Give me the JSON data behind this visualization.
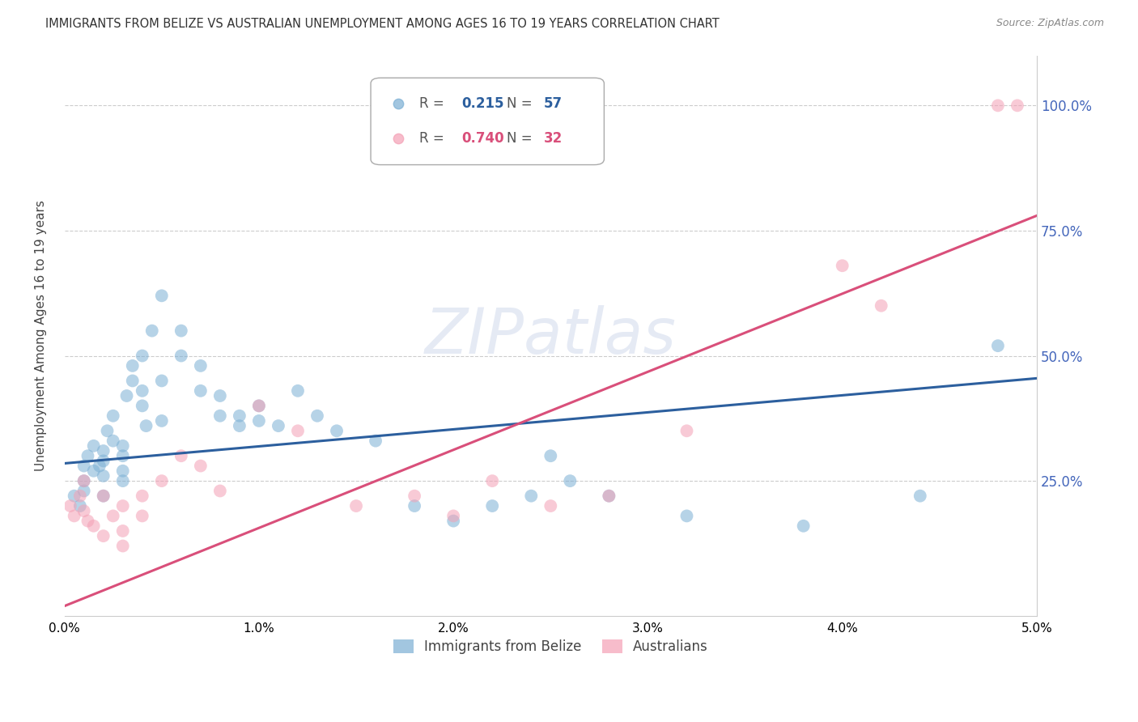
{
  "title": "IMMIGRANTS FROM BELIZE VS AUSTRALIAN UNEMPLOYMENT AMONG AGES 16 TO 19 YEARS CORRELATION CHART",
  "source": "Source: ZipAtlas.com",
  "ylabel": "Unemployment Among Ages 16 to 19 years",
  "ytick_values": [
    0.25,
    0.5,
    0.75,
    1.0
  ],
  "legend_blue_r": "0.215",
  "legend_blue_n": "57",
  "legend_pink_r": "0.740",
  "legend_pink_n": "32",
  "legend_blue_label": "Immigrants from Belize",
  "legend_pink_label": "Australians",
  "blue_color": "#7BAFD4",
  "pink_color": "#F4A0B5",
  "blue_line_color": "#2C5F9E",
  "pink_line_color": "#D94F7A",
  "watermark": "ZIPatlas",
  "blue_scatter_x": [
    0.0005,
    0.0008,
    0.001,
    0.001,
    0.001,
    0.0012,
    0.0015,
    0.0015,
    0.0018,
    0.002,
    0.002,
    0.002,
    0.002,
    0.0022,
    0.0025,
    0.0025,
    0.003,
    0.003,
    0.003,
    0.003,
    0.0032,
    0.0035,
    0.0035,
    0.004,
    0.004,
    0.004,
    0.0042,
    0.0045,
    0.005,
    0.005,
    0.005,
    0.006,
    0.006,
    0.007,
    0.007,
    0.008,
    0.008,
    0.009,
    0.009,
    0.01,
    0.01,
    0.011,
    0.012,
    0.013,
    0.014,
    0.016,
    0.018,
    0.02,
    0.022,
    0.024,
    0.025,
    0.026,
    0.028,
    0.032,
    0.038,
    0.044,
    0.048
  ],
  "blue_scatter_y": [
    0.22,
    0.2,
    0.28,
    0.25,
    0.23,
    0.3,
    0.27,
    0.32,
    0.28,
    0.26,
    0.29,
    0.31,
    0.22,
    0.35,
    0.38,
    0.33,
    0.3,
    0.27,
    0.32,
    0.25,
    0.42,
    0.45,
    0.48,
    0.4,
    0.43,
    0.5,
    0.36,
    0.55,
    0.62,
    0.45,
    0.37,
    0.5,
    0.55,
    0.43,
    0.48,
    0.38,
    0.42,
    0.36,
    0.38,
    0.37,
    0.4,
    0.36,
    0.43,
    0.38,
    0.35,
    0.33,
    0.2,
    0.17,
    0.2,
    0.22,
    0.3,
    0.25,
    0.22,
    0.18,
    0.16,
    0.22,
    0.52
  ],
  "pink_scatter_x": [
    0.0003,
    0.0005,
    0.0008,
    0.001,
    0.001,
    0.0012,
    0.0015,
    0.002,
    0.002,
    0.0025,
    0.003,
    0.003,
    0.003,
    0.004,
    0.004,
    0.005,
    0.006,
    0.007,
    0.008,
    0.01,
    0.012,
    0.015,
    0.018,
    0.02,
    0.022,
    0.025,
    0.028,
    0.032,
    0.04,
    0.042,
    0.048,
    0.049
  ],
  "pink_scatter_y": [
    0.2,
    0.18,
    0.22,
    0.19,
    0.25,
    0.17,
    0.16,
    0.22,
    0.14,
    0.18,
    0.12,
    0.2,
    0.15,
    0.22,
    0.18,
    0.25,
    0.3,
    0.28,
    0.23,
    0.4,
    0.35,
    0.2,
    0.22,
    0.18,
    0.25,
    0.2,
    0.22,
    0.35,
    0.68,
    0.6,
    1.0,
    1.0
  ],
  "blue_line_x": [
    0.0,
    0.05
  ],
  "blue_line_y": [
    0.285,
    0.455
  ],
  "pink_line_x": [
    0.0,
    0.05
  ],
  "pink_line_y": [
    0.0,
    0.78
  ],
  "xmin": 0.0,
  "xmax": 0.05,
  "ymin": -0.02,
  "ymax": 1.1
}
